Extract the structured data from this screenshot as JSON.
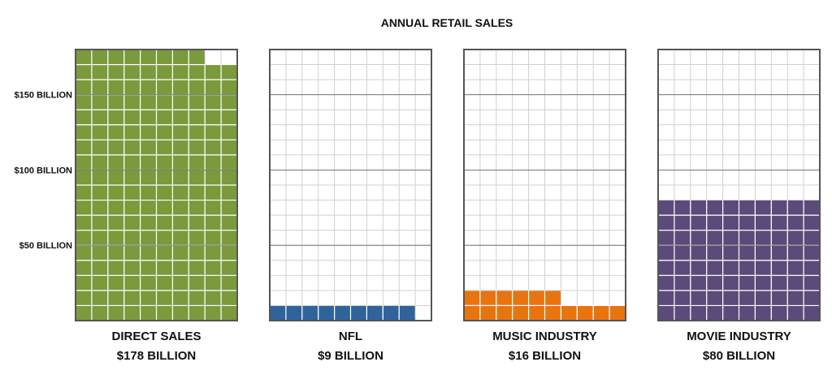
{
  "chart_data": {
    "type": "bar",
    "title": "ANNUAL RETAIL SALES",
    "y_tick_labels": [
      "$150 BILLION",
      "$100 BILLION",
      "$50 BILLION"
    ],
    "y_tick_values": [
      150,
      100,
      50
    ],
    "unit_per_cell": 1,
    "grid": true,
    "ylim": [
      0,
      180
    ],
    "categories": [
      "DIRECT SALES",
      "NFL",
      "MUSIC INDUSTRY",
      "MOVIE INDUSTRY"
    ],
    "value_labels": [
      "$178 BILLION",
      "$9 BILLION",
      "$16 BILLION",
      "$80 BILLION"
    ],
    "values": [
      178,
      9,
      16,
      80
    ],
    "colors": [
      "#7a9a3c",
      "#2e6499",
      "#e8740f",
      "#5c4a7a"
    ]
  }
}
